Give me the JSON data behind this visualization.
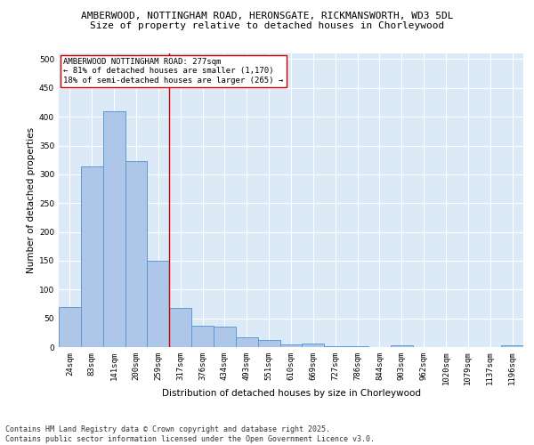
{
  "title_line1": "AMBERWOOD, NOTTINGHAM ROAD, HERONSGATE, RICKMANSWORTH, WD3 5DL",
  "title_line2": "Size of property relative to detached houses in Chorleywood",
  "xlabel": "Distribution of detached houses by size in Chorleywood",
  "ylabel": "Number of detached properties",
  "categories": [
    "24sqm",
    "83sqm",
    "141sqm",
    "200sqm",
    "259sqm",
    "317sqm",
    "376sqm",
    "434sqm",
    "493sqm",
    "551sqm",
    "610sqm",
    "669sqm",
    "727sqm",
    "786sqm",
    "844sqm",
    "903sqm",
    "962sqm",
    "1020sqm",
    "1079sqm",
    "1137sqm",
    "1196sqm"
  ],
  "values": [
    70,
    313,
    410,
    323,
    150,
    68,
    37,
    36,
    17,
    12,
    5,
    6,
    1,
    1,
    0,
    3,
    0,
    0,
    0,
    0,
    3
  ],
  "bar_color": "#aec6e8",
  "bar_edge_color": "#5b9bd5",
  "ref_line_x": 4.5,
  "ref_line_color": "#cc0000",
  "annotation_text": "AMBERWOOD NOTTINGHAM ROAD: 277sqm\n← 81% of detached houses are smaller (1,170)\n18% of semi-detached houses are larger (265) →",
  "annotation_box_color": "#ffffff",
  "annotation_box_edge": "#cc0000",
  "ylim": [
    0,
    510
  ],
  "yticks": [
    0,
    50,
    100,
    150,
    200,
    250,
    300,
    350,
    400,
    450,
    500
  ],
  "background_color": "#dce9f7",
  "grid_color": "#ffffff",
  "footer_line1": "Contains HM Land Registry data © Crown copyright and database right 2025.",
  "footer_line2": "Contains public sector information licensed under the Open Government Licence v3.0.",
  "title_fontsize": 8.0,
  "subtitle_fontsize": 8.0,
  "axis_label_fontsize": 7.5,
  "tick_fontsize": 6.5,
  "annotation_fontsize": 6.5,
  "footer_fontsize": 6.0
}
